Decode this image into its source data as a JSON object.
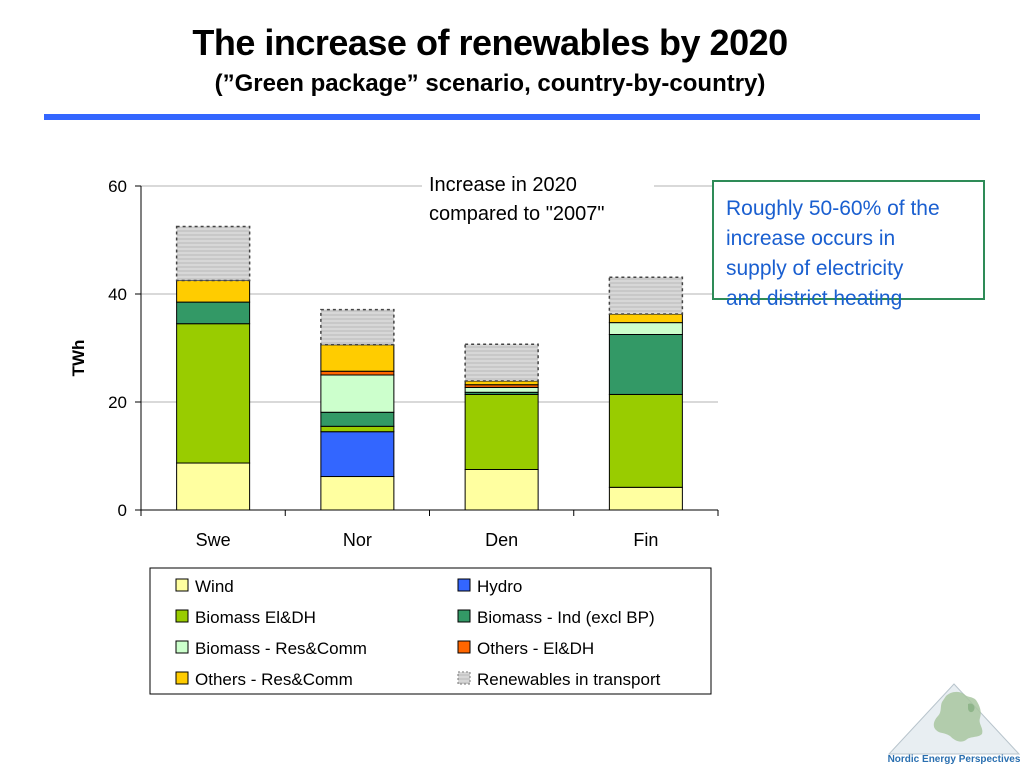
{
  "title": "The increase of renewables by 2020",
  "subtitle": "(”Green package” scenario, country-by-country)",
  "note_lines": [
    "Roughly 50-60% of the",
    "increase occurs in",
    "supply of electricity",
    "and district heating"
  ],
  "logo_text": "Nordic Energy Perspectives",
  "colors": {
    "rule": "#3366ff",
    "note_border": "#2e8b57",
    "note_text": "#1a5fd0"
  },
  "chart_data": {
    "type": "bar",
    "stacked": true,
    "annotation_lines": [
      "Increase in 2020",
      "compared to \"2007\""
    ],
    "ylabel": "TWh",
    "ylim": [
      0,
      60
    ],
    "yticks": [
      0,
      20,
      40,
      60
    ],
    "categories": [
      "Swe",
      "Nor",
      "Den",
      "Fin"
    ],
    "legend_placement": "bottom",
    "series": [
      {
        "name": "Wind",
        "color": "#ffffa0",
        "values": [
          8.7,
          6.2,
          7.5,
          4.2
        ]
      },
      {
        "name": "Hydro",
        "color": "#3366ff",
        "values": [
          0.0,
          8.3,
          0.0,
          0.0
        ]
      },
      {
        "name": "Biomass El&DH",
        "color": "#99cc00",
        "values": [
          25.8,
          1.0,
          13.9,
          17.2
        ]
      },
      {
        "name": "Biomass - Ind (excl BP)",
        "color": "#339966",
        "values": [
          4.0,
          2.6,
          0.4,
          11.1
        ]
      },
      {
        "name": "Biomass - Res&Comm",
        "color": "#ccffcc",
        "values": [
          0.0,
          6.9,
          0.9,
          2.2
        ]
      },
      {
        "name": "Others - El&DH",
        "color": "#ff6600",
        "values": [
          0.0,
          0.7,
          0.5,
          0.0
        ]
      },
      {
        "name": "Others - Res&Comm",
        "color": "#ffcc00",
        "values": [
          4.0,
          4.9,
          0.7,
          1.6
        ]
      },
      {
        "name": "Renewables in transport",
        "color": "#c8c8c8",
        "pattern": "dotted-outline",
        "values": [
          10.0,
          6.5,
          6.8,
          6.8
        ]
      }
    ]
  }
}
